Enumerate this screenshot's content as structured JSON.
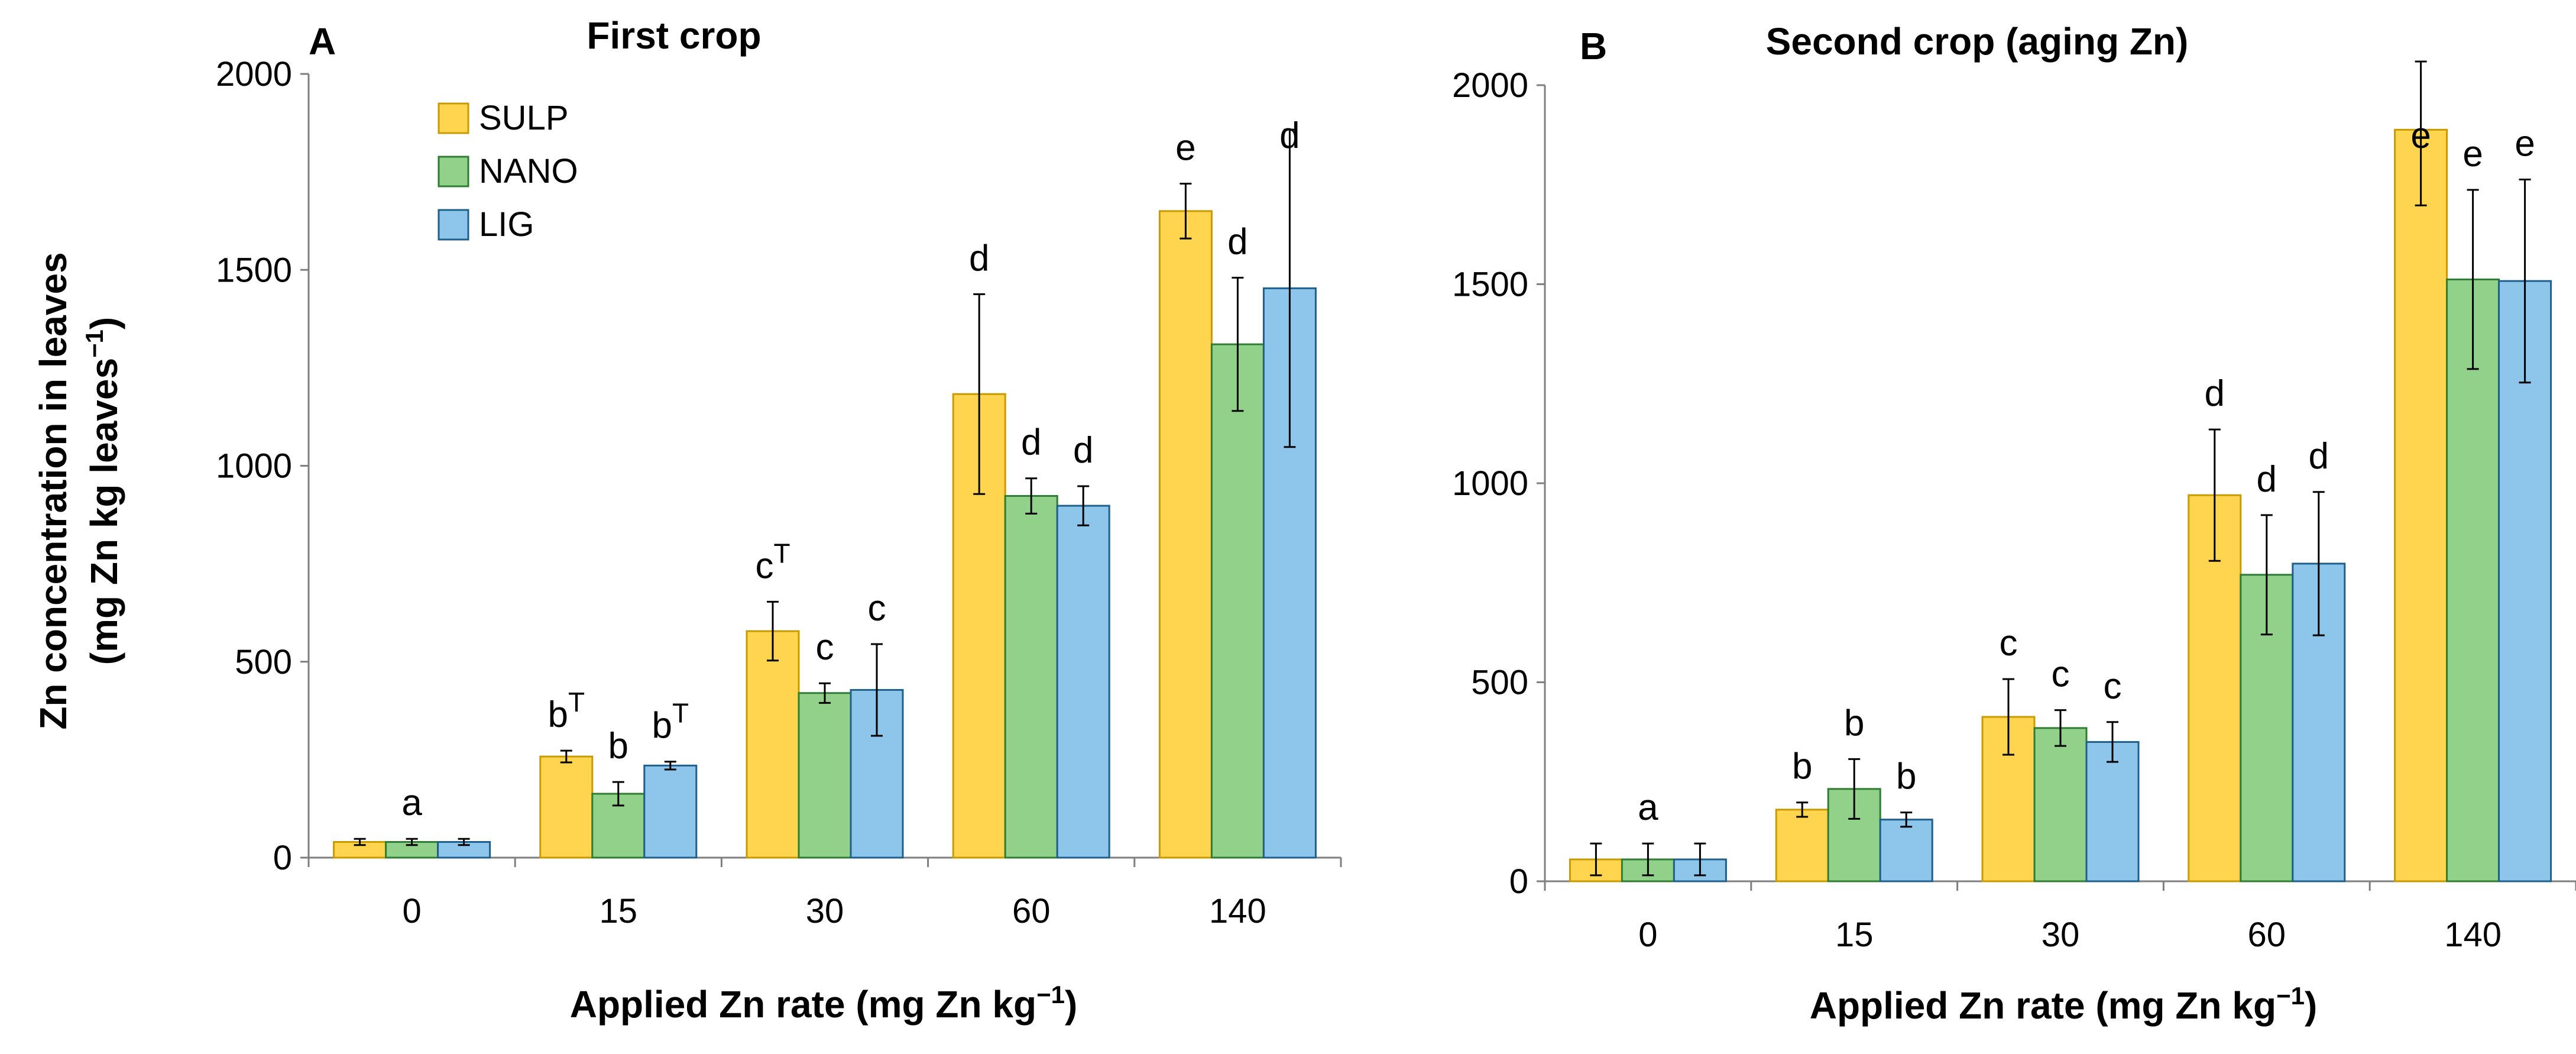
{
  "figure": {
    "ylabel_line1": "Zn concentration in leaves",
    "ylabel_line2": "(mg Zn kg leaves",
    "ylabel_sup": "−1",
    "ylabel_close": ")"
  },
  "legend": [
    {
      "name": "SULP",
      "color": "#FFD54F"
    },
    {
      "name": "NANO",
      "color": "#92D18A"
    },
    {
      "name": "LIG",
      "color": "#8EC5EA"
    }
  ],
  "chart_data": [
    {
      "type": "bar",
      "panel": "A",
      "title": "First crop",
      "xlabel_text": "Applied Zn rate (mg Zn kg",
      "xlabel_sup": "−1",
      "xlabel_close": ")",
      "categories": [
        "0",
        "15",
        "30",
        "60",
        "140"
      ],
      "ylim": [
        0,
        2000
      ],
      "yticks": [
        "0",
        "500",
        "1000",
        "1500",
        "2000"
      ],
      "series": [
        {
          "name": "SULP",
          "values": [
            40,
            258,
            578,
            1183,
            1650
          ],
          "errors": [
            8,
            15,
            75,
            255,
            70
          ]
        },
        {
          "name": "NANO",
          "values": [
            40,
            163,
            420,
            923,
            1310
          ],
          "errors": [
            8,
            30,
            25,
            45,
            170
          ]
        },
        {
          "name": "LIG",
          "values": [
            40,
            235,
            428,
            898,
            1453
          ],
          "errors": [
            8,
            10,
            117,
            50,
            405
          ]
        }
      ],
      "labels": [
        {
          "cat": 0,
          "series": 1,
          "text": "a",
          "sup": ""
        },
        {
          "cat": 1,
          "series": 0,
          "text": "b",
          "sup": "T"
        },
        {
          "cat": 1,
          "series": 1,
          "text": "b",
          "sup": ""
        },
        {
          "cat": 1,
          "series": 2,
          "text": "b",
          "sup": "T"
        },
        {
          "cat": 2,
          "series": 0,
          "text": "c",
          "sup": "T"
        },
        {
          "cat": 2,
          "series": 1,
          "text": "c",
          "sup": ""
        },
        {
          "cat": 2,
          "series": 2,
          "text": "c",
          "sup": ""
        },
        {
          "cat": 3,
          "series": 0,
          "text": "d",
          "sup": ""
        },
        {
          "cat": 3,
          "series": 1,
          "text": "d",
          "sup": ""
        },
        {
          "cat": 3,
          "series": 2,
          "text": "d",
          "sup": ""
        },
        {
          "cat": 4,
          "series": 0,
          "text": "e",
          "sup": ""
        },
        {
          "cat": 4,
          "series": 1,
          "text": "d",
          "sup": ""
        },
        {
          "cat": 4,
          "series": 2,
          "text": "d",
          "sup": ""
        }
      ]
    },
    {
      "type": "bar",
      "panel": "B",
      "title": "Second crop (aging Zn)",
      "xlabel_text": "Applied Zn rate (mg Zn kg",
      "xlabel_sup": "−1",
      "xlabel_close": ")",
      "categories": [
        "0",
        "15",
        "30",
        "60",
        "140"
      ],
      "ylim": [
        0,
        2000
      ],
      "yticks": [
        "0",
        "500",
        "1000",
        "1500",
        "2000"
      ],
      "series": [
        {
          "name": "SULP",
          "values": [
            55,
            180,
            413,
            970,
            1888
          ],
          "errors": [
            40,
            18,
            95,
            165,
            190
          ]
        },
        {
          "name": "NANO",
          "values": [
            55,
            232,
            385,
            770,
            1512
          ],
          "errors": [
            40,
            75,
            45,
            150,
            225
          ]
        },
        {
          "name": "LIG",
          "values": [
            55,
            155,
            350,
            798,
            1508
          ],
          "errors": [
            40,
            18,
            50,
            180,
            255
          ]
        }
      ],
      "labels": [
        {
          "cat": 0,
          "series": 1,
          "text": "a",
          "sup": ""
        },
        {
          "cat": 1,
          "series": 0,
          "text": "b",
          "sup": ""
        },
        {
          "cat": 1,
          "series": 1,
          "text": "b",
          "sup": ""
        },
        {
          "cat": 1,
          "series": 2,
          "text": "b",
          "sup": ""
        },
        {
          "cat": 2,
          "series": 0,
          "text": "c",
          "sup": ""
        },
        {
          "cat": 2,
          "series": 1,
          "text": "c",
          "sup": ""
        },
        {
          "cat": 2,
          "series": 2,
          "text": "c",
          "sup": ""
        },
        {
          "cat": 3,
          "series": 0,
          "text": "d",
          "sup": ""
        },
        {
          "cat": 3,
          "series": 1,
          "text": "d",
          "sup": ""
        },
        {
          "cat": 3,
          "series": 2,
          "text": "d",
          "sup": ""
        },
        {
          "cat": 4,
          "series": 0,
          "text": "e",
          "sup": ""
        },
        {
          "cat": 4,
          "series": 1,
          "text": "e",
          "sup": ""
        },
        {
          "cat": 4,
          "series": 2,
          "text": "e",
          "sup": ""
        }
      ]
    }
  ]
}
